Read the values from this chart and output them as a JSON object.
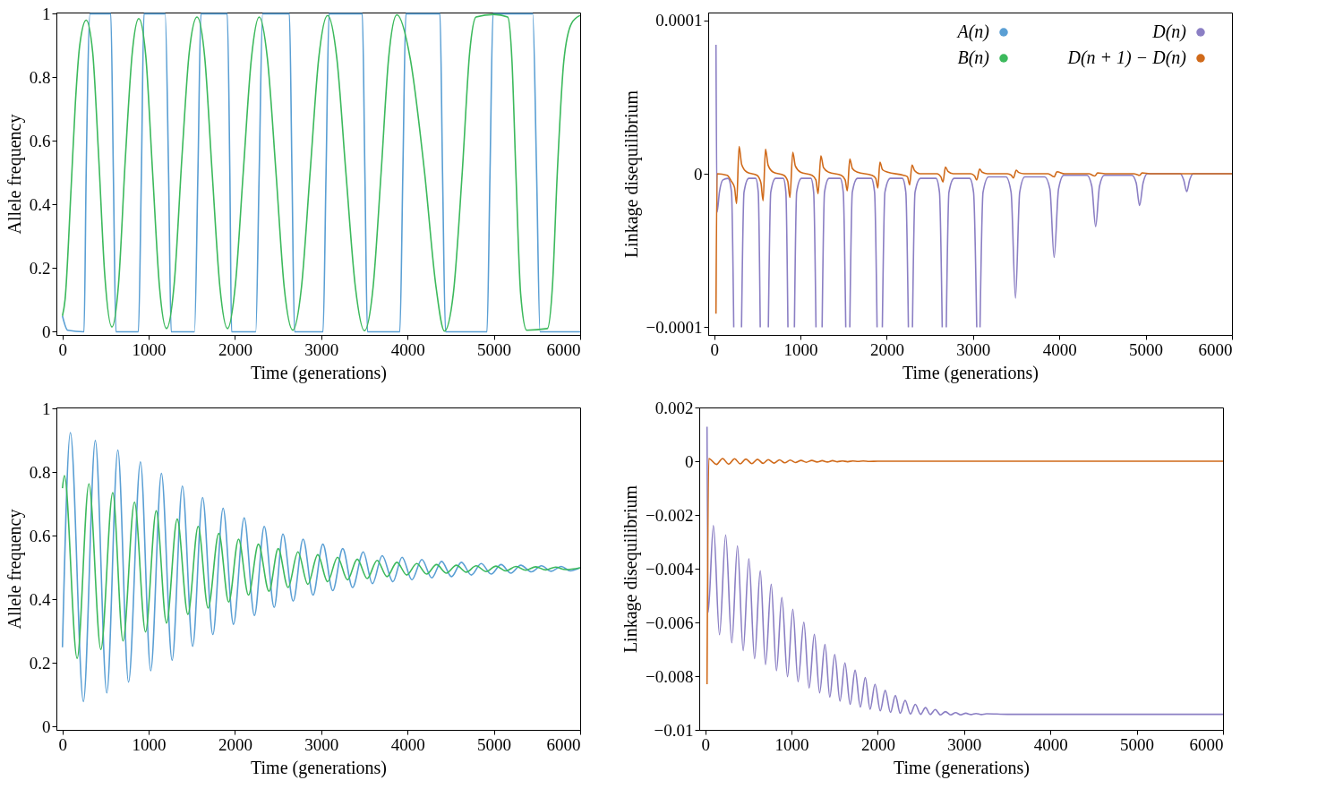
{
  "chart_data": [
    {
      "type": "line",
      "xlabel": "Time (generations)",
      "ylabel": "Allele frequency",
      "xlim": [
        -70,
        6000
      ],
      "ylim": [
        -0.01,
        1.004
      ],
      "xticks": [
        0,
        1000,
        2000,
        3000,
        4000,
        5000,
        6000
      ],
      "yticks": [
        0,
        0.2,
        0.4,
        0.6,
        0.8,
        1
      ],
      "legend": "top right",
      "series": [
        {
          "name": "A(n)",
          "color": "#5a9fd4",
          "x": [
            0,
            60,
            250,
            275,
            320,
            560,
            590,
            620,
            880,
            915,
            945,
            1190,
            1230,
            1260,
            1530,
            1570,
            1605,
            1910,
            1940,
            1960,
            2240,
            2280,
            2320,
            2630,
            2660,
            2690,
            3020,
            3055,
            3090,
            3475,
            3505,
            3535,
            3910,
            3945,
            3980,
            4375,
            4405,
            4440,
            4920,
            4955,
            4990,
            5450,
            5495,
            5535,
            6000
          ],
          "values": [
            0.05,
            0.005,
            0,
            0.5,
            1,
            1,
            0.5,
            0,
            0,
            0.5,
            1,
            1,
            0.5,
            0,
            0,
            0.5,
            1,
            1,
            0.5,
            0,
            0,
            0.5,
            1,
            1,
            0.5,
            0,
            0,
            0.5,
            1,
            1,
            0.5,
            0,
            0,
            0.5,
            1,
            1,
            0.5,
            0,
            0,
            0.5,
            1,
            1,
            0.5,
            0,
            0
          ]
        },
        {
          "name": "B(n)",
          "color": "#3cb95c",
          "x": [
            0,
            30,
            100,
            150,
            200,
            275,
            350,
            420,
            490,
            573,
            650,
            730,
            810,
            885,
            965,
            1045,
            1125,
            1206,
            1295,
            1385,
            1470,
            1560,
            1650,
            1735,
            1825,
            1913,
            2005,
            2095,
            2190,
            2280,
            2375,
            2475,
            2570,
            2670,
            2770,
            2870,
            2970,
            3073,
            3180,
            3285,
            3395,
            3500,
            3600,
            3693,
            3780,
            3876,
            4030,
            4197,
            4330,
            4427,
            4530,
            4633,
            4720,
            4793,
            5000,
            5160,
            5210,
            5255,
            5310,
            5380,
            5620,
            5680,
            5735,
            5810,
            5900,
            6000
          ],
          "values": [
            0.05,
            0.1,
            0.45,
            0.72,
            0.9,
            0.98,
            0.88,
            0.55,
            0.18,
            0.015,
            0.15,
            0.55,
            0.88,
            0.985,
            0.87,
            0.5,
            0.14,
            0.01,
            0.15,
            0.55,
            0.88,
            0.99,
            0.86,
            0.5,
            0.14,
            0.01,
            0.15,
            0.5,
            0.86,
            0.99,
            0.86,
            0.5,
            0.14,
            0.005,
            0.14,
            0.5,
            0.86,
            0.995,
            0.86,
            0.5,
            0.14,
            0.003,
            0.14,
            0.5,
            0.86,
            0.997,
            0.86,
            0.5,
            0.14,
            0.002,
            0.12,
            0.5,
            0.88,
            0.99,
            0.998,
            0.99,
            0.85,
            0.5,
            0.12,
            0.005,
            0.01,
            0.15,
            0.5,
            0.85,
            0.97,
            0.995
          ]
        }
      ]
    },
    {
      "type": "line",
      "xlabel": "Time (generations)",
      "ylabel": "Linkage disequilibrium",
      "xlim": [
        -70,
        6000
      ],
      "ylim": [
        -0.000105,
        0.000105
      ],
      "xticks": [
        0,
        1000,
        2000,
        3000,
        4000,
        5000,
        6000
      ],
      "yticks": [
        {
          "value": -0.0001,
          "label": "−0.0001"
        },
        0,
        {
          "value": 0.0001,
          "label": "0.0001"
        }
      ],
      "legend": "top right",
      "series": [
        {
          "name": "D(n)",
          "color": "#8b7fc4",
          "x": [
            20,
            33,
            60,
            100,
            160,
            200,
            226,
            270,
            316,
            345,
            400,
            480,
            510,
            533,
            580,
            627,
            655,
            710,
            800,
            830,
            854,
            891,
            929,
            955,
            1010,
            1120,
            1152,
            1179,
            1215,
            1250,
            1278,
            1330,
            1460,
            1495,
            1524,
            1547,
            1571,
            1600,
            1660,
            1820,
            1858,
            1887,
            1917,
            1948,
            1978,
            2040,
            2180,
            2220,
            2250,
            2274,
            2297,
            2327,
            2390,
            2570,
            2610,
            2642,
            2665,
            2689,
            2720,
            2780,
            2960,
            3005,
            3042,
            3061,
            3080,
            3115,
            3180,
            3380,
            3440,
            3491,
            3540,
            3600,
            3830,
            3890,
            3939,
            3990,
            4050,
            4320,
            4375,
            4420,
            4465,
            4520,
            4840,
            4890,
            4929,
            4970,
            5020,
            5400,
            5440,
            5476,
            5510,
            5550,
            6000
          ],
          "values": [
            8.4e-05,
            -2.5e-05,
            -1.2e-05,
            -4e-06,
            -3e-06,
            -1.2e-05,
            -0.0001,
            null,
            -0.0001,
            -1.2e-05,
            -3e-06,
            -3e-06,
            -1.2e-05,
            -0.0001,
            null,
            -0.0001,
            -1.2e-05,
            -3e-06,
            -3e-06,
            -1.2e-05,
            -0.0001,
            null,
            -0.0001,
            -1.2e-05,
            -3e-06,
            -3e-06,
            -1.2e-05,
            -0.0001,
            null,
            -0.0001,
            -1.2e-05,
            -3e-06,
            -3e-06,
            -1.2e-05,
            -0.0001,
            null,
            -0.0001,
            -1.2e-05,
            -3e-06,
            -3e-06,
            -1.2e-05,
            -0.0001,
            null,
            -0.0001,
            -1.2e-05,
            -3e-06,
            -3e-06,
            -1.2e-05,
            -0.0001,
            null,
            -0.0001,
            -1.2e-05,
            -3e-06,
            -3e-06,
            -1.2e-05,
            -0.0001,
            null,
            -0.0001,
            -1.2e-05,
            -3e-06,
            -3e-06,
            -1.2e-05,
            -0.0001,
            null,
            -0.0001,
            -1.2e-05,
            -2e-06,
            -2e-06,
            -1.2e-05,
            -8.1e-05,
            -1.2e-05,
            -2e-06,
            -2e-06,
            -1e-05,
            -5.45e-05,
            -1e-05,
            -1e-06,
            -1e-06,
            -8e-06,
            -3.44e-05,
            -8e-06,
            -1e-06,
            -1e-06,
            -6e-06,
            -2.07e-05,
            -6e-06,
            0,
            0,
            -4e-06,
            -1.16e-05,
            -4e-06,
            0,
            0
          ]
        },
        {
          "name": "D(n + 1) − D(n)",
          "color": "#d06a1a",
          "x": [
            20,
            33,
            150,
            200,
            235,
            259,
            288,
            318,
            380,
            496,
            541,
            566,
            594,
            624,
            684,
            807,
            852,
            877,
            910,
            940,
            1000,
            1133,
            1178,
            1203,
            1236,
            1266,
            1326,
            1472,
            1517,
            1542,
            1571,
            1601,
            1661,
            1826,
            1871,
            1896,
            1920,
            1950,
            2010,
            2194,
            2239,
            2264,
            2292,
            2322,
            2382,
            2581,
            2626,
            2651,
            2679,
            2709,
            2769,
            2972,
            3017,
            3042,
            3075,
            3105,
            3165,
            3397,
            3442,
            3467,
            3500,
            3530,
            3590,
            3869,
            3939,
            3972,
            4060,
            4340,
            4410,
            4443,
            4530,
            4860,
            4929,
            4958,
            5050,
            6000
          ],
          "values": [
            -9.12e-05,
            0,
            -1e-06,
            -5e-06,
            -9e-06,
            -1.94e-05,
            1.78e-05,
            6e-06,
            1e-06,
            -1e-06,
            -6e-06,
            -1.76e-05,
            1.6e-05,
            5.6e-06,
            1e-06,
            -1e-06,
            -5e-06,
            -1.55e-05,
            1.4e-05,
            5e-06,
            1e-06,
            -1e-06,
            -4e-06,
            -1.29e-05,
            1.16e-05,
            4e-06,
            1e-06,
            -1e-06,
            -4e-06,
            -1.11e-05,
            9.6e-06,
            3.4e-06,
            1e-06,
            -1e-06,
            -3e-06,
            -9.3e-06,
            7.5e-06,
            2.6e-06,
            1e-06,
            -1e-06,
            -2e-06,
            -7.2e-06,
            5.7e-06,
            2e-06,
            0,
            0,
            -2e-06,
            -5.4e-06,
            4.4e-06,
            1.5e-06,
            0,
            0,
            -1.5e-06,
            -4.1e-06,
            3e-06,
            1e-06,
            0,
            0,
            -1e-06,
            -2.8e-06,
            2.3e-06,
            8e-07,
            0,
            0,
            -2e-06,
            1.3e-06,
            0,
            0,
            -1.5e-06,
            5e-07,
            0,
            0,
            -1e-06,
            5e-07,
            0,
            0
          ]
        }
      ]
    },
    {
      "type": "line",
      "xlabel": "Time (generations)",
      "ylabel": "Allele frequency",
      "xlim": [
        -70,
        6000
      ],
      "ylim": [
        -0.01,
        1.004
      ],
      "xticks": [
        0,
        1000,
        2000,
        3000,
        4000,
        5000,
        6000
      ],
      "yticks": [
        0,
        0.2,
        0.4,
        0.6,
        0.8,
        1
      ],
      "series": [
        {
          "color": "#5a9fd4",
          "x": [
            0,
            92,
            243,
            381,
            514,
            642,
            766,
            904,
            1023,
            1147,
            1271,
            1390,
            1509,
            1624,
            1743,
            1862,
            1982,
            2106,
            2225,
            2339,
            2454,
            2555,
            2674,
            2789,
            2904,
            3018,
            3133,
            3248,
            3362,
            3486,
            3592,
            3706,
            3830,
            3936,
            4050,
            4165,
            4280,
            4394,
            4509,
            4624,
            4739,
            4853,
            4968,
            5083,
            5197,
            5312,
            5436,
            5550,
            5665,
            5780,
            5885,
            6000
          ],
          "values": [
            0.25,
            0.925,
            0.079,
            0.9,
            0.106,
            0.87,
            0.14,
            0.833,
            0.176,
            0.797,
            0.209,
            0.757,
            0.253,
            0.721,
            0.29,
            0.687,
            0.322,
            0.657,
            0.35,
            0.63,
            0.375,
            0.606,
            0.395,
            0.59,
            0.414,
            0.574,
            0.428,
            0.56,
            0.438,
            0.55,
            0.45,
            0.538,
            0.456,
            0.533,
            0.462,
            0.526,
            0.468,
            0.52,
            0.472,
            0.517,
            0.477,
            0.513,
            0.48,
            0.51,
            0.483,
            0.508,
            0.487,
            0.506,
            0.489,
            0.504,
            0.49,
            0.5
          ]
        },
        {
          "color": "#3cb95c",
          "x": [
            0,
            23,
            170,
            307,
            445,
            583,
            702,
            835,
            963,
            1087,
            1206,
            1330,
            1454,
            1573,
            1688,
            1812,
            1927,
            2041,
            2156,
            2271,
            2394,
            2500,
            2615,
            2729,
            2844,
            2959,
            3073,
            3188,
            3303,
            3417,
            3532,
            3647,
            3761,
            3876,
            3991,
            4106,
            4220,
            4335,
            4450,
            4565,
            4680,
            4795,
            4910,
            5025,
            5140,
            5255,
            5370,
            5485,
            5600,
            5715,
            5830,
            6000
          ],
          "values": [
            0.75,
            0.79,
            0.215,
            0.764,
            0.243,
            0.736,
            0.27,
            0.706,
            0.298,
            0.679,
            0.326,
            0.653,
            0.353,
            0.63,
            0.373,
            0.608,
            0.392,
            0.59,
            0.414,
            0.574,
            0.426,
            0.56,
            0.438,
            0.55,
            0.448,
            0.541,
            0.456,
            0.533,
            0.462,
            0.527,
            0.466,
            0.523,
            0.472,
            0.517,
            0.477,
            0.513,
            0.48,
            0.51,
            0.483,
            0.508,
            0.486,
            0.506,
            0.488,
            0.505,
            0.49,
            0.504,
            0.492,
            0.503,
            0.493,
            0.502,
            0.494,
            0.5
          ]
        }
      ]
    },
    {
      "type": "line",
      "xlabel": "Time (generations)",
      "ylabel": "Linkage disequilibrium",
      "xlim": [
        -70,
        6000
      ],
      "ylim": [
        -0.01,
        0.002
      ],
      "xticks": [
        0,
        1000,
        2000,
        3000,
        4000,
        5000,
        6000
      ],
      "yticks": [
        {
          "value": -0.01,
          "label": "−0.01"
        },
        {
          "value": -0.008,
          "label": "−0.008"
        },
        {
          "value": -0.006,
          "label": "−0.006"
        },
        {
          "value": -0.004,
          "label": "−0.004"
        },
        {
          "value": -0.002,
          "label": "−0.002"
        },
        0,
        0.002
      ],
      "series": [
        {
          "color": "#8b7fc4",
          "x": [
            20,
            33,
            94,
            165,
            236,
            307,
            373,
            439,
            505,
            571,
            637,
            698,
            764,
            825,
            887,
            953,
            1014,
            1075,
            1142,
            1203,
            1264,
            1325,
            1387,
            1443,
            1500,
            1561,
            1618,
            1679,
            1736,
            1797,
            1854,
            1910,
            1967,
            2028,
            2085,
            2146,
            2203,
            2259,
            2316,
            2377,
            2434,
            2495,
            2552,
            2608,
            2665,
            2726,
            2783,
            2844,
            2901,
            2960,
            3019,
            3080,
            3137,
            3200,
            3260,
            3500,
            6000
          ],
          "values": [
            0.00128,
            -0.00562,
            -0.00239,
            -0.00646,
            -0.00274,
            -0.00676,
            -0.00315,
            -0.00705,
            -0.00363,
            -0.00735,
            -0.00408,
            -0.00757,
            -0.00458,
            -0.0078,
            -0.00507,
            -0.00802,
            -0.00551,
            -0.00821,
            -0.00599,
            -0.00844,
            -0.00644,
            -0.00862,
            -0.00682,
            -0.00878,
            -0.00719,
            -0.00893,
            -0.00751,
            -0.00905,
            -0.00778,
            -0.00915,
            -0.00805,
            -0.00923,
            -0.0083,
            -0.00929,
            -0.00853,
            -0.00935,
            -0.00872,
            -0.00938,
            -0.0089,
            -0.00941,
            -0.00905,
            -0.00942,
            -0.00917,
            -0.00943,
            -0.00924,
            -0.00944,
            -0.00932,
            -0.00944,
            -0.00936,
            -0.00944,
            -0.00938,
            -0.00943,
            -0.00939,
            -0.00943,
            -0.0094,
            -0.00942,
            -0.00942
          ]
        },
        {
          "color": "#d06a1a",
          "x": [
            20,
            40,
            130,
            200,
            271,
            340,
            405,
            470,
            540,
            605,
            670,
            730,
            795,
            860,
            920,
            985,
            1045,
            1110,
            1170,
            1235,
            1295,
            1355,
            1415,
            1475,
            1530,
            1590,
            1650,
            1710,
            1770,
            1830,
            1900,
            2000,
            6000
          ],
          "values": [
            -0.0083,
            0.0001,
            -0.00012,
            0.0001,
            -0.00011,
            9e-05,
            -0.0001,
            8e-05,
            -9e-05,
            7e-05,
            -8e-05,
            6e-05,
            -7e-05,
            5e-05,
            -6e-05,
            4e-05,
            -5e-05,
            3e-05,
            -4e-05,
            3e-05,
            -3e-05,
            2e-05,
            -3e-05,
            2e-05,
            -2e-05,
            1e-05,
            -2e-05,
            1e-05,
            -1e-05,
            1e-05,
            -1e-05,
            0,
            0
          ]
        }
      ]
    }
  ]
}
